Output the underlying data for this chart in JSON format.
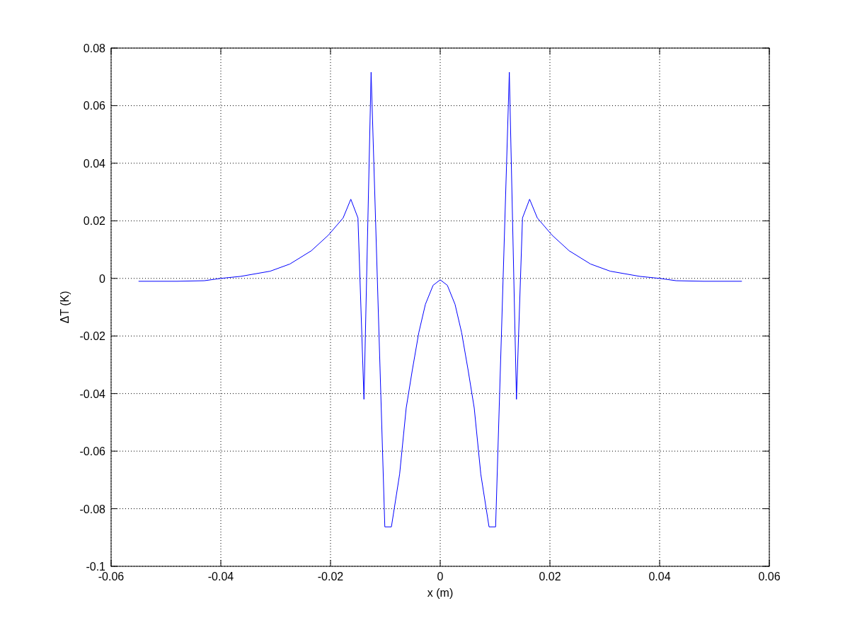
{
  "chart_data": {
    "type": "line",
    "xlabel": "x (m)",
    "ylabel": "ΔT (K)",
    "xlim": [
      -0.06,
      0.06
    ],
    "xticks": [
      -0.06,
      -0.04,
      -0.02,
      0,
      0.02,
      0.04,
      0.06
    ],
    "ylim": [
      -0.1,
      0.08
    ],
    "yticks": [
      -0.1,
      -0.08,
      -0.06,
      -0.04,
      -0.02,
      0,
      0.02,
      0.04,
      0.06,
      0.08
    ],
    "grid": true,
    "line_style": "solid",
    "marker": "none",
    "x": [
      -0.055,
      -0.048,
      -0.043,
      -0.04,
      -0.0364,
      -0.031,
      -0.0274,
      -0.0235,
      -0.0204,
      -0.0177,
      -0.0163,
      -0.015,
      -0.0139,
      -0.0126,
      -0.0101,
      -0.0089,
      -0.0074,
      -0.0062,
      -0.0051,
      -0.0039,
      -0.0027,
      -0.0013,
      0,
      0.0013,
      0.0027,
      0.0039,
      0.0051,
      0.0062,
      0.0074,
      0.0089,
      0.0101,
      0.0126,
      0.0139,
      0.015,
      0.0163,
      0.0177,
      0.0204,
      0.0235,
      0.0274,
      0.031,
      0.0364,
      0.04,
      0.043,
      0.048,
      0.055
    ],
    "series": [
      {
        "color": "#0000ff",
        "values": [
          -0.001,
          -0.001,
          -0.0008,
          0,
          0.0007,
          0.0025,
          0.005,
          0.0096,
          0.015,
          0.021,
          0.0275,
          0.021,
          -0.042,
          0.0716,
          -0.0863,
          -0.0863,
          -0.068,
          -0.045,
          -0.032,
          -0.0188,
          -0.009,
          -0.0024,
          -0.0005,
          -0.0024,
          -0.009,
          -0.0188,
          -0.032,
          -0.045,
          -0.068,
          -0.0863,
          -0.0863,
          0.0716,
          -0.042,
          0.021,
          0.0275,
          0.021,
          0.015,
          0.0096,
          0.005,
          0.0025,
          0.0007,
          0,
          -0.0008,
          -0.001,
          -0.001
        ]
      }
    ]
  }
}
